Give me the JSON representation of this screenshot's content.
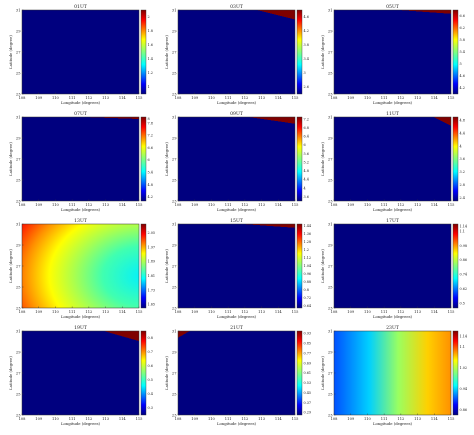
{
  "chart_data": [
    {
      "type": "heatmap",
      "title": "01UT",
      "xlabel": "Longitude (degrees)",
      "ylabel": "Latitude (degree)",
      "x_ticks": [
        "108",
        "109",
        "110",
        "111",
        "112",
        "113",
        "114",
        "115"
      ],
      "y_ticks": [
        "23",
        "25",
        "27",
        "29",
        "31"
      ],
      "xlim": [
        108,
        115
      ],
      "ylim": [
        23,
        31
      ],
      "colorbar_ticks": [
        "1",
        "1.2",
        "1.4",
        "1.6",
        "1.8",
        "2"
      ],
      "clim": [
        0.9,
        2.1
      ],
      "field": "lat",
      "slope": 0
    },
    {
      "type": "heatmap",
      "title": "03UT",
      "xlabel": "Longitude (degrees)",
      "ylabel": "Latitude (degree)",
      "x_ticks": [
        "108",
        "109",
        "110",
        "111",
        "112",
        "113",
        "114",
        "115"
      ],
      "y_ticks": [
        "23",
        "25",
        "27",
        "29",
        "31"
      ],
      "xlim": [
        108,
        115
      ],
      "ylim": [
        23,
        31
      ],
      "colorbar_ticks": [
        "2.6",
        "3",
        "3.4",
        "3.8",
        "4.2",
        "4.6"
      ],
      "clim": [
        2.4,
        4.8
      ],
      "field": "lat",
      "slope": 0.35
    },
    {
      "type": "heatmap",
      "title": "05UT",
      "xlabel": "Longitude (degrees)",
      "ylabel": "Latitude (degree)",
      "x_ticks": [
        "108",
        "109",
        "110",
        "111",
        "112",
        "113",
        "114",
        "115"
      ],
      "y_ticks": [
        "23",
        "25",
        "27",
        "29",
        "31"
      ],
      "xlim": [
        108,
        115
      ],
      "ylim": [
        23,
        31
      ],
      "colorbar_ticks": [
        "4.2",
        "4.6",
        "5",
        "5.4",
        "5.8",
        "6.2",
        "6.6"
      ],
      "clim": [
        4.0,
        6.8
      ],
      "field": "lat",
      "slope": 0.1
    },
    {
      "type": "heatmap",
      "title": "07UT",
      "xlabel": "Longitude (degrees)",
      "ylabel": "Latitude (degree)",
      "x_ticks": [
        "108",
        "109",
        "110",
        "111",
        "112",
        "113",
        "114",
        "115"
      ],
      "y_ticks": [
        "23",
        "25",
        "27",
        "29",
        "31"
      ],
      "xlim": [
        108,
        115
      ],
      "ylim": [
        23,
        31
      ],
      "colorbar_ticks": [
        "4.2",
        "4.8",
        "5.4",
        "6",
        "6.6",
        "7.2",
        "7.8",
        "8"
      ],
      "clim": [
        4.0,
        8.1
      ],
      "field": "lat",
      "slope": 0.05
    },
    {
      "type": "heatmap",
      "title": "09UT",
      "xlabel": "Longitude (degrees)",
      "ylabel": "Latitude (degree)",
      "x_ticks": [
        "108",
        "109",
        "110",
        "111",
        "112",
        "113",
        "114",
        "115"
      ],
      "y_ticks": [
        "23",
        "25",
        "27",
        "29",
        "31"
      ],
      "xlim": [
        108,
        115
      ],
      "ylim": [
        23,
        31
      ],
      "colorbar_ticks": [
        "3.6",
        "4",
        "4.4",
        "4.8",
        "5.2",
        "5.6",
        "6",
        "6.4",
        "6.8",
        "7.2"
      ],
      "clim": [
        3.4,
        7.3
      ],
      "field": "lat",
      "slope": 0.2
    },
    {
      "type": "heatmap",
      "title": "11UT",
      "xlabel": "Longitude (degrees)",
      "ylabel": "Latitude (degree)",
      "x_ticks": [
        "108",
        "109",
        "110",
        "111",
        "112",
        "113",
        "114",
        "115"
      ],
      "y_ticks": [
        "23",
        "25",
        "27",
        "29",
        "31"
      ],
      "xlim": [
        108,
        115
      ],
      "ylim": [
        23,
        31
      ],
      "colorbar_ticks": [
        "2.4",
        "2.8",
        "3.2",
        "3.6",
        "4",
        "4.4",
        "4.8"
      ],
      "clim": [
        2.3,
        4.9
      ],
      "field": "lat",
      "slope": 0.7
    },
    {
      "type": "heatmap",
      "title": "13UT",
      "xlabel": "Longitude (degrees)",
      "ylabel": "Latitude (degree)",
      "x_ticks": [
        "108",
        "109",
        "110",
        "111",
        "112",
        "113",
        "114",
        "115"
      ],
      "y_ticks": [
        "23",
        "25",
        "27",
        "29",
        "31"
      ],
      "xlim": [
        108,
        115
      ],
      "ylim": [
        23,
        31
      ],
      "colorbar_ticks": [
        "1.65",
        "1.73",
        "1.81",
        "1.89",
        "1.97",
        "2.05"
      ],
      "clim": [
        1.63,
        2.1
      ],
      "field": "radial"
    },
    {
      "type": "heatmap",
      "title": "15UT",
      "xlabel": "Longitude (degrees)",
      "ylabel": "Latitude (degree)",
      "x_ticks": [
        "108",
        "109",
        "110",
        "111",
        "112",
        "113",
        "114",
        "115"
      ],
      "y_ticks": [
        "23",
        "25",
        "27",
        "29",
        "31"
      ],
      "xlim": [
        108,
        115
      ],
      "ylim": [
        23,
        31
      ],
      "colorbar_ticks": [
        "0.64",
        "0.72",
        "0.8",
        "0.88",
        "0.96",
        "1.04",
        "1.12",
        "1.2",
        "1.28",
        "1.36",
        "1.44"
      ],
      "clim": [
        0.62,
        1.46
      ],
      "field": "lat",
      "slope": 0.1
    },
    {
      "type": "heatmap",
      "title": "17UT",
      "xlabel": "Longitude (degrees)",
      "ylabel": "Latitude (degree)",
      "x_ticks": [
        "108",
        "109",
        "110",
        "111",
        "112",
        "113",
        "114",
        "115"
      ],
      "y_ticks": [
        "23",
        "25",
        "27",
        "29",
        "31"
      ],
      "xlim": [
        108,
        115
      ],
      "ylim": [
        23,
        31
      ],
      "colorbar_ticks": [
        "0.5",
        "0.62",
        "0.74",
        "0.86",
        "0.98",
        "1.1",
        "1.14"
      ],
      "clim": [
        0.46,
        1.16
      ],
      "field": "lat",
      "slope": 0
    },
    {
      "type": "heatmap",
      "title": "19UT",
      "xlabel": "Longitude (degrees)",
      "ylabel": "Latitude (degree)",
      "x_ticks": [
        "108",
        "109",
        "110",
        "111",
        "112",
        "113",
        "114",
        "115"
      ],
      "y_ticks": [
        "23",
        "25",
        "27",
        "29",
        "31"
      ],
      "xlim": [
        108,
        115
      ],
      "ylim": [
        23,
        31
      ],
      "colorbar_ticks": [
        "0.3",
        "0.4",
        "0.5",
        "0.6",
        "0.7",
        "0.8"
      ],
      "clim": [
        0.25,
        0.85
      ],
      "field": "lat",
      "slope": 0.4
    },
    {
      "type": "heatmap",
      "title": "21UT",
      "xlabel": "Longitude (degrees)",
      "ylabel": "Latitude (degree)",
      "x_ticks": [
        "108",
        "109",
        "110",
        "111",
        "112",
        "113",
        "114",
        "115"
      ],
      "y_ticks": [
        "23",
        "25",
        "27",
        "29",
        "31"
      ],
      "xlim": [
        108,
        115
      ],
      "ylim": [
        23,
        31
      ],
      "colorbar_ticks": [
        "0.29",
        "0.37",
        "0.45",
        "0.53",
        "0.61",
        "0.69",
        "0.77",
        "0.85",
        "0.93"
      ],
      "clim": [
        0.27,
        0.95
      ],
      "field": "lat",
      "slope": -0.8
    },
    {
      "type": "heatmap",
      "title": "23UT",
      "xlabel": "Longitude (degrees)",
      "ylabel": "Latitude (degree)",
      "x_ticks": [
        "108",
        "109",
        "110",
        "111",
        "112",
        "113",
        "114",
        "115"
      ],
      "y_ticks": [
        "23",
        "25",
        "27",
        "29",
        "31"
      ],
      "xlim": [
        108,
        115
      ],
      "ylim": [
        23,
        31
      ],
      "colorbar_ticks": [
        "0.86",
        "0.94",
        "1.02",
        "1.1",
        "1.14"
      ],
      "clim": [
        0.84,
        1.16
      ],
      "field": "lon"
    }
  ]
}
